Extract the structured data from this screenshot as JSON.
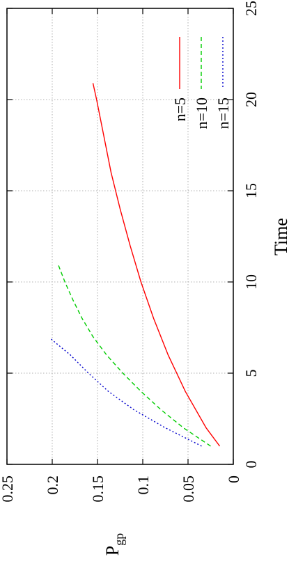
{
  "chart_data": {
    "type": "line",
    "orientation": "rotated-90-ccw",
    "title": "",
    "xlabel": "Time",
    "ylabel": "P",
    "ylabel_subscript": "gp",
    "xlim": [
      0,
      25
    ],
    "ylim": [
      0,
      0.25
    ],
    "x_ticks": [
      "0",
      "5",
      "10",
      "15",
      "20",
      "25"
    ],
    "y_ticks": [
      "0",
      "0.05",
      "0.1",
      "0.15",
      "0.2",
      "0.25"
    ],
    "grid": true,
    "legend_position": "top-right",
    "series": [
      {
        "name": "n=5",
        "color": "#ff0000",
        "dash": "solid",
        "points": [
          [
            1,
            0.015
          ],
          [
            2,
            0.03
          ],
          [
            4,
            0.053
          ],
          [
            6,
            0.072
          ],
          [
            8,
            0.088
          ],
          [
            10,
            0.102
          ],
          [
            12,
            0.114
          ],
          [
            14,
            0.125
          ],
          [
            16,
            0.135
          ],
          [
            18,
            0.143
          ],
          [
            20,
            0.151
          ],
          [
            20.9,
            0.155
          ]
        ]
      },
      {
        "name": "n=10",
        "color": "#00cc00",
        "dash": "dashed",
        "points": [
          [
            1,
            0.025
          ],
          [
            2,
            0.055
          ],
          [
            3,
            0.08
          ],
          [
            4,
            0.102
          ],
          [
            5,
            0.122
          ],
          [
            6,
            0.14
          ],
          [
            7,
            0.155
          ],
          [
            8,
            0.167
          ],
          [
            9,
            0.177
          ],
          [
            10,
            0.186
          ],
          [
            10.9,
            0.193
          ]
        ]
      },
      {
        "name": "n=15",
        "color": "#0000cc",
        "dash": "dotted",
        "points": [
          [
            1,
            0.035
          ],
          [
            2,
            0.075
          ],
          [
            3,
            0.11
          ],
          [
            4,
            0.138
          ],
          [
            5,
            0.16
          ],
          [
            6,
            0.18
          ],
          [
            6.9,
            0.202
          ]
        ]
      }
    ]
  }
}
